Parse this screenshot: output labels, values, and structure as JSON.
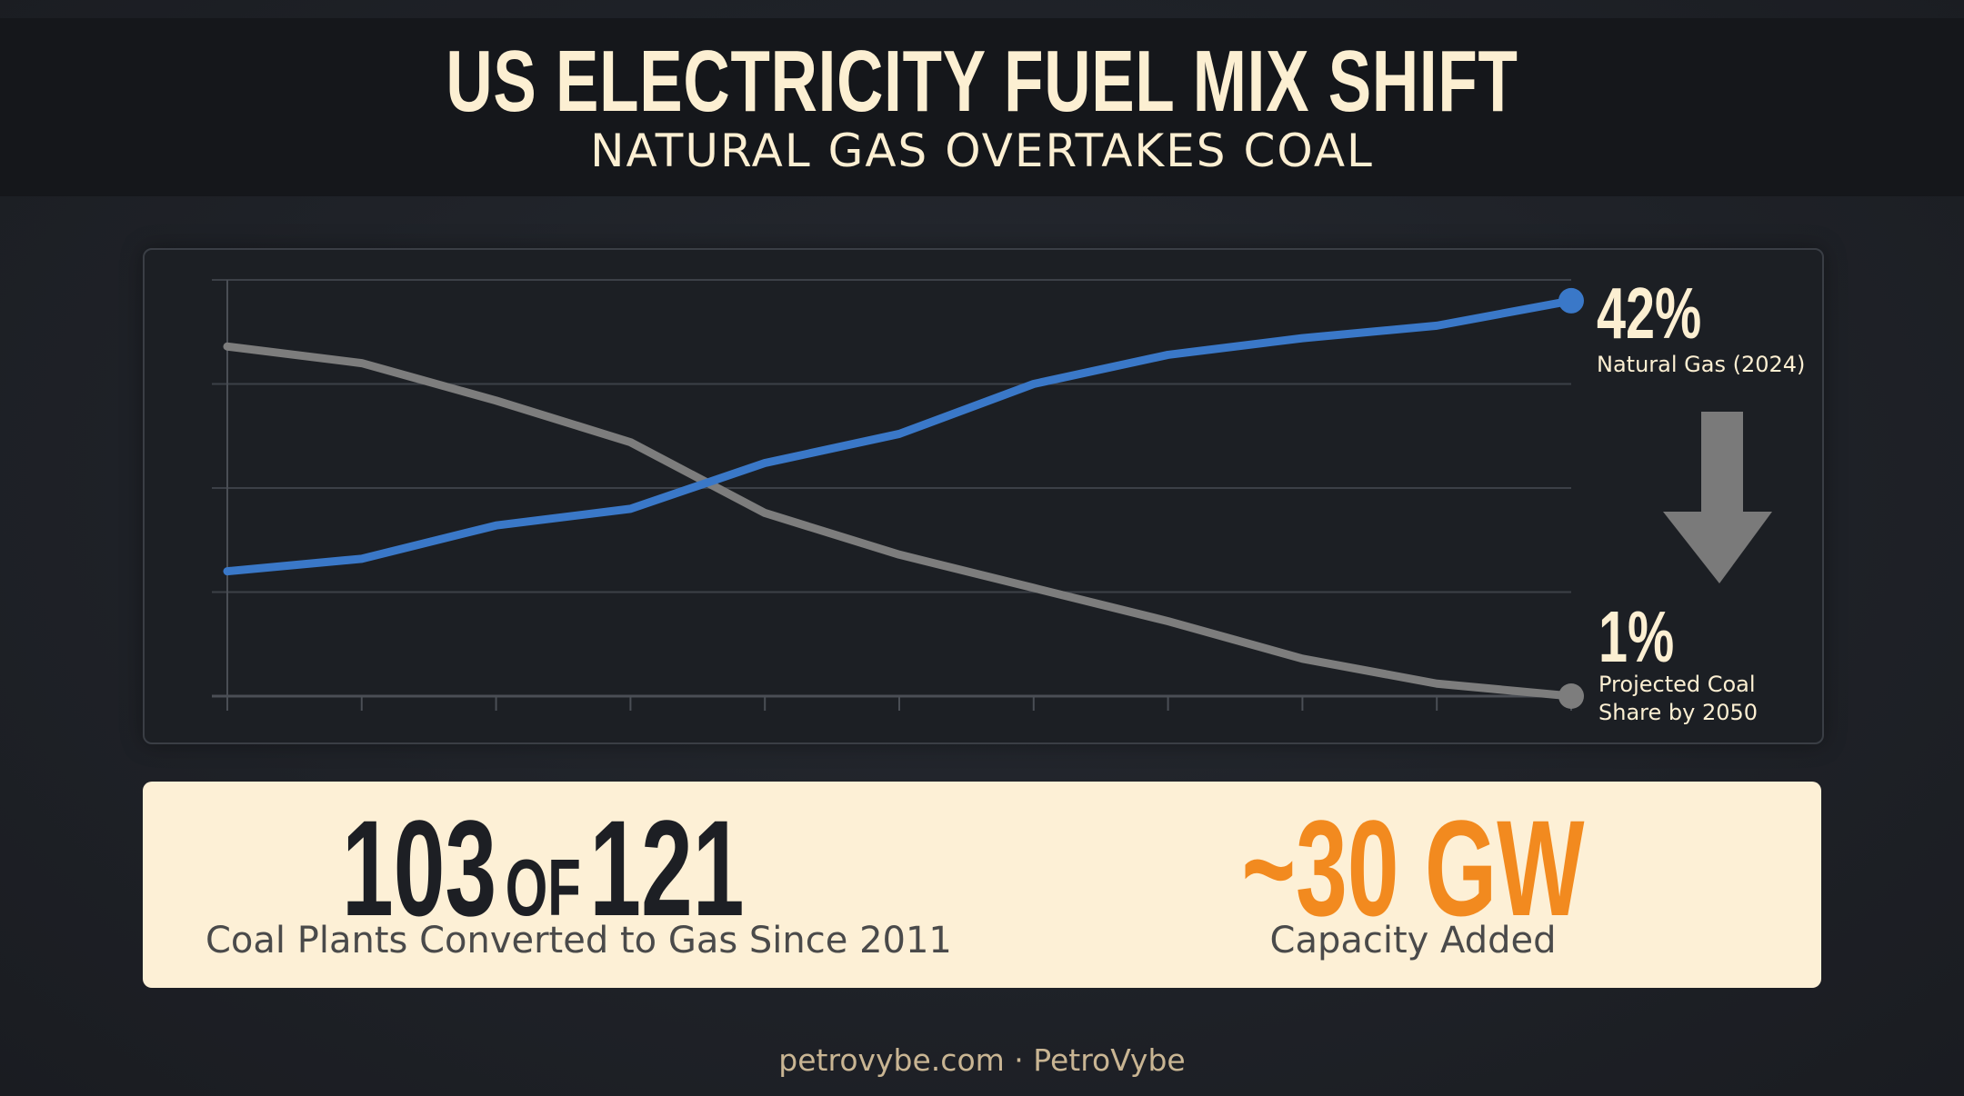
{
  "title": "US ELECTRICITY FUEL MIX SHIFT",
  "subtitle": "NATURAL GAS OVERTAKES COAL",
  "chart_data": {
    "type": "line",
    "x": [
      0,
      1,
      2,
      3,
      4,
      5,
      6,
      7,
      8,
      9,
      10
    ],
    "series": [
      {
        "name": "",
        "color": "#3a78c8",
        "values": [
          0.3,
          0.33,
          0.41,
          0.45,
          0.56,
          0.63,
          0.75,
          0.82,
          0.86,
          0.89,
          0.95
        ]
      },
      {
        "name": "",
        "color": "#7d7d7d",
        "values": [
          0.84,
          0.8,
          0.71,
          0.61,
          0.44,
          0.34,
          0.26,
          0.18,
          0.09,
          0.03,
          0.0
        ]
      }
    ],
    "ylim": [
      0,
      1
    ],
    "grid": true,
    "annotations": [
      {
        "series": 0,
        "value": "42%",
        "label": "Natural Gas (2024)"
      },
      {
        "series": 1,
        "value": "1%",
        "label_lines": [
          "Projected Coal",
          "Share by 2050"
        ]
      }
    ],
    "down_arrow": true
  },
  "stats": {
    "left": {
      "value_a": "103",
      "connector": "OF",
      "value_b": "121",
      "caption": "Coal Plants Converted to Gas Since 2011"
    },
    "right": {
      "value": "~30 GW",
      "caption": "Capacity Added"
    }
  },
  "footer": "petrovybe.com · PetroVybe",
  "colors": {
    "gas": "#3a78c8",
    "coal": "#7d7d7d",
    "accent": "#f28a1f",
    "card": "#fdf0d6",
    "title": "#fcefd2"
  }
}
